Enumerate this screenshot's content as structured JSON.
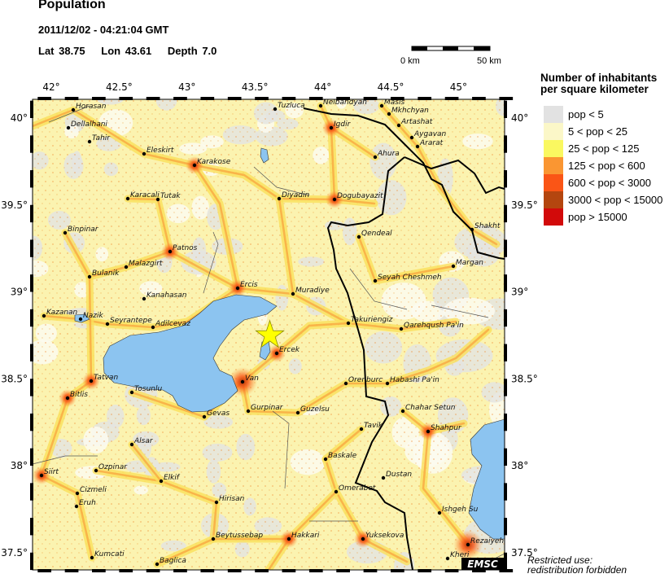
{
  "header": {
    "title": "Population",
    "datetime": "2011/12/02 - 04:21:04 GMT",
    "lat_label": "Lat 38.75",
    "lon_label": "Lon  43.61",
    "depth_label": "Depth  7.0"
  },
  "event": {
    "lat": 38.75,
    "lon": 43.61,
    "depth": 7.0,
    "marker": "star-icon",
    "marker_color": "#ffff00"
  },
  "scale_bar": {
    "start_label": "0 km",
    "end_label": "50 km"
  },
  "map": {
    "lon_ticks": [
      "42°",
      "42.5°",
      "43°",
      "43.5°",
      "44°",
      "44.5°",
      "45°"
    ],
    "lat_ticks_left": [
      "40°",
      "39.5°",
      "39°",
      "38.5°",
      "38°",
      "37.5°"
    ],
    "lat_ticks_right": [
      "40°",
      "39.5°",
      "39°",
      "38.5°",
      "38°",
      "37.5°"
    ],
    "water_color": "#8cc4f0",
    "cities": [
      "Horasan",
      "Dellalhani",
      "Tahir",
      "Eleskirt",
      "Karakose",
      "Karacali",
      "Tutak",
      "Binpinar",
      "Patnos",
      "Malazgirt",
      "Bulanik",
      "Ercis",
      "Kanahasan",
      "Kazanan",
      "Nazik",
      "Seyrantepe",
      "Adilcevaz",
      "Tatvan",
      "Van",
      "Bitlis",
      "Tosunlu",
      "Gevas",
      "Gurpinar",
      "Guzelsu",
      "Alsar",
      "Ozpinar",
      "Siirt",
      "Elkif",
      "Cizmeli",
      "Eruh",
      "Hirisan",
      "Beytussebap",
      "Kumcati",
      "Baglica",
      "Tuzluca",
      "Nelbandyan",
      "Masis",
      "Mkhchyan",
      "Artashat",
      "Aygavan",
      "Ararat",
      "Igdir",
      "Ahura",
      "Diyadin",
      "Dogubayazit",
      "Qendeal",
      "Margan",
      "Seyah Cheshmeh",
      "Shakht",
      "Muradiye",
      "Takuriengiz",
      "Qarehqush Pa'in",
      "Ercek",
      "Orenburc",
      "Habashi Pa'in",
      "Chahar Setun",
      "Tavik",
      "Shahpur",
      "Baskale",
      "Dustan",
      "Omerabet",
      "Ishgeh Su",
      "Hakkari",
      "Yuksekova",
      "Rezaiyeh",
      "Kheri"
    ],
    "logo": "EMSC"
  },
  "legend": {
    "title_line1": "Number of inhabitants",
    "title_line2": "per square kilometer",
    "items": [
      {
        "label": "pop < 5",
        "color": "#e2e2e2"
      },
      {
        "label": "5 < pop < 25",
        "color": "#fbf7c8"
      },
      {
        "label": "25 < pop < 125",
        "color": "#faf860"
      },
      {
        "label": "125 < pop < 600",
        "color": "#fa9632"
      },
      {
        "label": "600 < pop < 3000",
        "color": "#fa5516"
      },
      {
        "label": "3000 < pop < 15000",
        "color": "#b4460f"
      },
      {
        "label": "pop > 15000",
        "color": "#d20a0a"
      }
    ]
  },
  "note": {
    "line1": "Restricted use:",
    "line2": "redistribution forbidden"
  }
}
